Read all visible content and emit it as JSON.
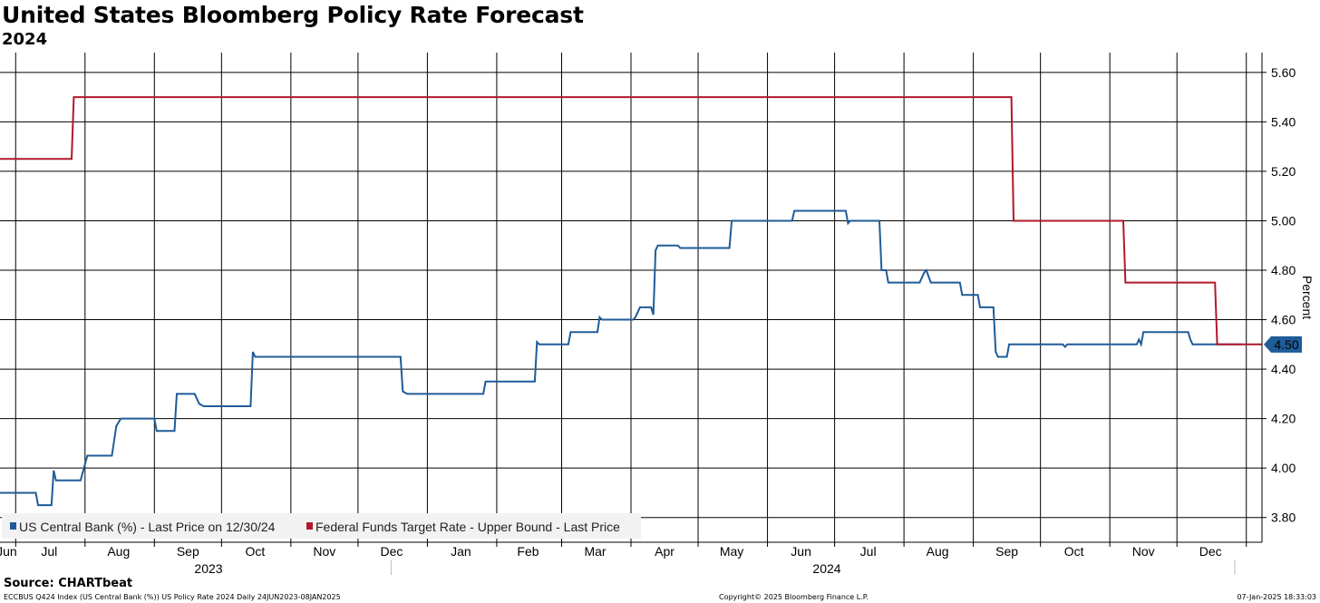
{
  "title": "United States Bloomberg Policy Rate Forecast",
  "subtitle": "2024",
  "source": "Source: CHARTbeat",
  "footer": {
    "left": "ECCBUS Q424 Index (US Central Bank (%)) US Policy Rate 2024  Daily 24JUN2023-08JAN2025",
    "center": "Copyright© 2025 Bloomberg Finance L.P.",
    "right": "07-Jan-2025 18:33:03"
  },
  "colors": {
    "blue": "#1f5c99",
    "red": "#b2182b",
    "grid": "#000000",
    "legend_bg": "#f2f2f2"
  },
  "chart_data": {
    "type": "line",
    "x_range": [
      "2023-06-24",
      "2025-01-08"
    ],
    "ylim": [
      3.7,
      5.68
    ],
    "yaxis_side": "right",
    "ylabel": "Percent",
    "y_ticks": [
      "3.80",
      "4.00",
      "4.20",
      "4.40",
      "4.60",
      "4.80",
      "5.00",
      "5.20",
      "5.40",
      "5.60"
    ],
    "x_month_labels": [
      "Jun",
      "Jul",
      "Aug",
      "Sep",
      "Oct",
      "Nov",
      "Dec",
      "Jan",
      "Feb",
      "Mar",
      "Apr",
      "May",
      "Jun",
      "Jul",
      "Aug",
      "Sep",
      "Oct",
      "Nov",
      "Dec"
    ],
    "x_year_labels": [
      "2023",
      "2024"
    ],
    "last_value_label": "4.50",
    "grid": true,
    "legend_position": "bottom-left",
    "series": [
      {
        "name": "US Central Bank (%) - Last Price on 12/30/24",
        "color": "#1f5c99",
        "points": [
          [
            "2023-06-24",
            3.9
          ],
          [
            "2023-07-10",
            3.9
          ],
          [
            "2023-07-11",
            3.85
          ],
          [
            "2023-07-17",
            3.85
          ],
          [
            "2023-07-18",
            3.99
          ],
          [
            "2023-07-19",
            3.95
          ],
          [
            "2023-07-30",
            3.95
          ],
          [
            "2023-08-02",
            4.05
          ],
          [
            "2023-08-13",
            4.05
          ],
          [
            "2023-08-15",
            4.17
          ],
          [
            "2023-08-17",
            4.2
          ],
          [
            "2023-09-01",
            4.2
          ],
          [
            "2023-09-02",
            4.15
          ],
          [
            "2023-09-10",
            4.15
          ],
          [
            "2023-09-11",
            4.3
          ],
          [
            "2023-09-19",
            4.3
          ],
          [
            "2023-09-21",
            4.26
          ],
          [
            "2023-09-23",
            4.25
          ],
          [
            "2023-10-14",
            4.25
          ],
          [
            "2023-10-15",
            4.47
          ],
          [
            "2023-10-16",
            4.45
          ],
          [
            "2023-12-20",
            4.45
          ],
          [
            "2023-12-21",
            4.31
          ],
          [
            "2023-12-23",
            4.3
          ],
          [
            "2024-01-26",
            4.3
          ],
          [
            "2024-01-27",
            4.35
          ],
          [
            "2024-02-18",
            4.35
          ],
          [
            "2024-02-19",
            4.51
          ],
          [
            "2024-02-20",
            4.5
          ],
          [
            "2024-03-04",
            4.5
          ],
          [
            "2024-03-05",
            4.55
          ],
          [
            "2024-03-17",
            4.55
          ],
          [
            "2024-03-18",
            4.61
          ],
          [
            "2024-03-19",
            4.6
          ],
          [
            "2024-04-02",
            4.6
          ],
          [
            "2024-04-03",
            4.61
          ],
          [
            "2024-04-05",
            4.65
          ],
          [
            "2024-04-10",
            4.65
          ],
          [
            "2024-04-11",
            4.62
          ],
          [
            "2024-04-12",
            4.88
          ],
          [
            "2024-04-13",
            4.9
          ],
          [
            "2024-04-22",
            4.9
          ],
          [
            "2024-04-23",
            4.89
          ],
          [
            "2024-05-15",
            4.89
          ],
          [
            "2024-05-16",
            5.0
          ],
          [
            "2024-06-12",
            5.0
          ],
          [
            "2024-06-13",
            5.04
          ],
          [
            "2024-07-06",
            5.04
          ],
          [
            "2024-07-07",
            4.99
          ],
          [
            "2024-07-08",
            5.0
          ],
          [
            "2024-07-21",
            5.0
          ],
          [
            "2024-07-22",
            4.8
          ],
          [
            "2024-07-24",
            4.8
          ],
          [
            "2024-07-25",
            4.75
          ],
          [
            "2024-08-08",
            4.75
          ],
          [
            "2024-08-10",
            4.79
          ],
          [
            "2024-08-11",
            4.8
          ],
          [
            "2024-08-13",
            4.75
          ],
          [
            "2024-08-26",
            4.75
          ],
          [
            "2024-08-27",
            4.7
          ],
          [
            "2024-09-03",
            4.7
          ],
          [
            "2024-09-04",
            4.65
          ],
          [
            "2024-09-10",
            4.65
          ],
          [
            "2024-09-11",
            4.47
          ],
          [
            "2024-09-12",
            4.45
          ],
          [
            "2024-09-16",
            4.45
          ],
          [
            "2024-09-17",
            4.5
          ],
          [
            "2024-10-11",
            4.5
          ],
          [
            "2024-10-12",
            4.49
          ],
          [
            "2024-10-13",
            4.5
          ],
          [
            "2024-11-13",
            4.5
          ],
          [
            "2024-11-14",
            4.52
          ],
          [
            "2024-11-15",
            4.5
          ],
          [
            "2024-11-16",
            4.55
          ],
          [
            "2024-12-06",
            4.55
          ],
          [
            "2024-12-07",
            4.52
          ],
          [
            "2024-12-08",
            4.5
          ],
          [
            "2024-12-30",
            4.5
          ]
        ]
      },
      {
        "name": "Federal Funds Target Rate - Upper Bound - Last Price",
        "color": "#b2182b",
        "points": [
          [
            "2023-06-24",
            5.25
          ],
          [
            "2023-07-26",
            5.25
          ],
          [
            "2023-07-27",
            5.5
          ],
          [
            "2024-09-18",
            5.5
          ],
          [
            "2024-09-19",
            5.0
          ],
          [
            "2024-11-07",
            5.0
          ],
          [
            "2024-11-08",
            4.75
          ],
          [
            "2024-12-18",
            4.75
          ],
          [
            "2024-12-19",
            4.5
          ],
          [
            "2025-01-08",
            4.5
          ]
        ]
      }
    ]
  }
}
